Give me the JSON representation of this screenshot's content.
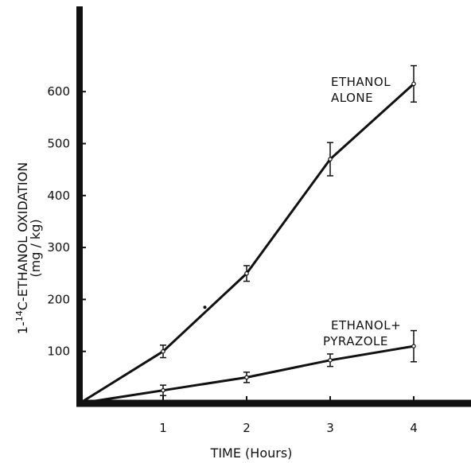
{
  "chart_data": {
    "type": "line",
    "title": "",
    "xlabel": "TIME (Hours)",
    "ylabel": "1-14C-ETHANOL OXIDATION",
    "ylabel_parts": {
      "prefix": "1-",
      "superscript": "14",
      "rest": "C-ETHANOL OXIDATION",
      "units": "(mg / kg)"
    },
    "x_ticks": [
      1,
      2,
      3,
      4
    ],
    "x_tick_labels": [
      "1",
      "2",
      "3",
      "4"
    ],
    "y_ticks": [
      100,
      200,
      300,
      400,
      500,
      600
    ],
    "y_tick_labels": [
      "100",
      "200",
      "300",
      "400",
      "500",
      "600"
    ],
    "xlim": [
      0,
      4.65
    ],
    "ylim": [
      0,
      720
    ],
    "grid": false,
    "legend": "none",
    "series": [
      {
        "name": "ETHANOL ALONE",
        "label_lines": [
          "ETHANOL",
          "ALONE"
        ],
        "x": [
          0,
          1,
          2,
          3,
          4
        ],
        "y": [
          0,
          100,
          250,
          470,
          615
        ],
        "error": [
          0,
          12,
          15,
          32,
          35
        ],
        "extra_points": [
          {
            "x": 1.5,
            "y": 185
          }
        ]
      },
      {
        "name": "ETHANOL + PYRAZOLE",
        "label_lines": [
          "ETHANOL+",
          "PYRAZOLE"
        ],
        "x": [
          0,
          1,
          2,
          3,
          4
        ],
        "y": [
          0,
          25,
          50,
          83,
          110
        ],
        "error": [
          0,
          10,
          10,
          12,
          30
        ]
      }
    ],
    "colors": {
      "ink": "#111111",
      "background": "#ffffff"
    }
  }
}
